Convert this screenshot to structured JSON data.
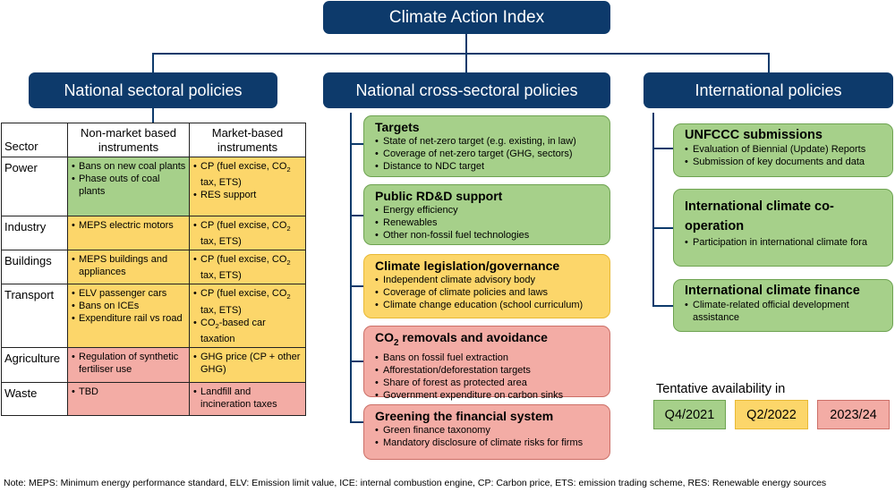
{
  "title": "Climate Action Index",
  "columns": {
    "sectoral": "National sectoral policies",
    "cross": "National cross-sectoral policies",
    "international": "International policies"
  },
  "sector_table": {
    "headers": [
      "Sector",
      "Non-market based instruments",
      "Market-based instruments"
    ],
    "rows": [
      {
        "sector": "Power",
        "nonmarket": [
          "Bans on new coal plants",
          "Phase outs of coal plants"
        ],
        "market": [
          "CP (fuel excise, CO2 tax, ETS)",
          "RES support"
        ],
        "nm_color": "green",
        "m_color": "yellow"
      },
      {
        "sector": "Industry",
        "nonmarket": [
          "MEPS electric motors"
        ],
        "market": [
          "CP (fuel excise, CO2 tax, ETS)"
        ],
        "nm_color": "yellow",
        "m_color": "yellow"
      },
      {
        "sector": "Buildings",
        "nonmarket": [
          "MEPS buildings and appliances"
        ],
        "market": [
          "CP (fuel excise, CO2 tax, ETS)"
        ],
        "nm_color": "yellow",
        "m_color": "yellow"
      },
      {
        "sector": "Transport",
        "nonmarket": [
          "ELV passenger cars",
          "Bans on ICEs",
          "Expenditure rail vs road"
        ],
        "market": [
          "CP (fuel excise, CO2 tax, ETS)",
          "CO2-based car taxation"
        ],
        "nm_color": "yellow",
        "m_color": "yellow"
      },
      {
        "sector": "Agriculture",
        "nonmarket": [
          "Regulation of synthetic fertiliser use"
        ],
        "market": [
          "GHG price (CP + other GHG)"
        ],
        "nm_color": "red",
        "m_color": "yellow"
      },
      {
        "sector": "Waste",
        "nonmarket": [
          "TBD"
        ],
        "market": [
          "Landfill and incineration taxes"
        ],
        "nm_color": "red",
        "m_color": "red"
      }
    ]
  },
  "cross_boxes": [
    {
      "title": "Targets",
      "color": "green",
      "items": [
        "State of net-zero target (e.g. existing, in law)",
        "Coverage of net-zero target (GHG, sectors)",
        "Distance to NDC target"
      ]
    },
    {
      "title": "Public RD&D support",
      "color": "green",
      "items": [
        "Energy efficiency",
        "Renewables",
        "Other non-fossil fuel technologies"
      ]
    },
    {
      "title": "Climate legislation/governance",
      "color": "yellow",
      "items": [
        "Independent climate advisory body",
        "Coverage of climate policies and laws",
        "Climate change education (school curriculum)"
      ]
    },
    {
      "title": "CO2 removals and avoidance",
      "color": "red",
      "items": [
        "Bans on fossil fuel extraction",
        "Afforestation/deforestation targets",
        "Share of forest as protected area",
        "Government expenditure on carbon sinks"
      ]
    },
    {
      "title": "Greening the financial system",
      "color": "red",
      "items": [
        "Green finance taxonomy",
        "Mandatory disclosure of climate risks for firms"
      ]
    }
  ],
  "intl_boxes": [
    {
      "title": "UNFCCC submissions",
      "color": "green",
      "items": [
        "Evaluation of Biennial (Update) Reports",
        "Submission of key documents and data"
      ]
    },
    {
      "title": "International climate co-operation",
      "color": "green",
      "items": [
        "Participation in international climate fora"
      ]
    },
    {
      "title": "International climate finance",
      "color": "green",
      "items": [
        "Climate-related official development assistance"
      ]
    }
  ],
  "legend": {
    "title": "Tentative availability in",
    "items": [
      {
        "label": "Q4/2021",
        "color": "#a6d08a"
      },
      {
        "label": "Q2/2022",
        "color": "#fcd66a"
      },
      {
        "label": "2023/24",
        "color": "#f3aca5"
      }
    ]
  },
  "note": "Note: MEPS: Minimum energy performance standard, ELV: Emission limit value, ICE: internal combustion engine, CP: Carbon price, ETS: emission trading scheme, RES: Renewable energy sources",
  "colors": {
    "header": "#0d3a6b",
    "green": "#a6d08a",
    "yellow": "#fcd66a",
    "red": "#f3aca5"
  }
}
